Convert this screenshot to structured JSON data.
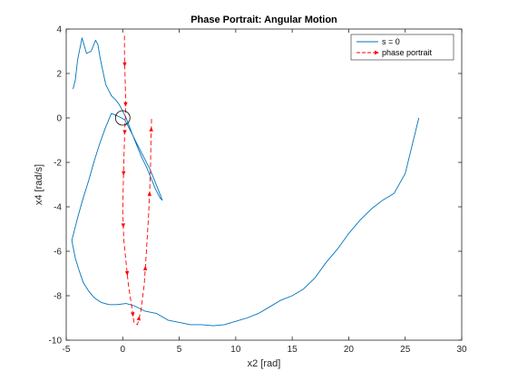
{
  "chart_data": {
    "type": "line",
    "title": "Phase Portrait: Angular Motion",
    "xlabel": "x2 [rad]",
    "ylabel": "x4 [rad/s]",
    "xlim": [
      -5,
      30
    ],
    "ylim": [
      -10,
      4
    ],
    "xticks": [
      -5,
      0,
      5,
      10,
      15,
      20,
      25,
      30
    ],
    "yticks": [
      -10,
      -8,
      -6,
      -4,
      -2,
      0,
      2,
      4
    ],
    "grid": false,
    "legend_position": "top-right",
    "series": [
      {
        "name": "s = 0",
        "color": "#0072BD",
        "style": "solid",
        "x": [
          -4.4,
          -4.2,
          -4.0,
          -3.6,
          -3.2,
          -2.8,
          -2.4,
          -2.2,
          -2.0,
          -1.8,
          -1.5,
          -1.2,
          -1.0,
          -0.8,
          -0.6,
          -0.3,
          0.0,
          0.3,
          0.6,
          0.9,
          1.3,
          1.7,
          2.1,
          2.5,
          2.9,
          3.3,
          3.5,
          3.2,
          2.8,
          2.4,
          2.0,
          1.6,
          1.2,
          0.8,
          0.5,
          0.2,
          -0.1,
          -0.5,
          -1.0,
          -1.5,
          -2.0,
          -2.5,
          -3.0,
          -3.5,
          -4.0,
          -4.4,
          -4.5,
          -4.4,
          -4.2,
          -3.9,
          -3.5,
          -3.0,
          -2.5,
          -1.9,
          -1.2,
          -0.5,
          0.3,
          1.0,
          2.0,
          3.0,
          4.0,
          5.0,
          6.0,
          7.0,
          8.0,
          9.0,
          10.0,
          11.0,
          12.0,
          13.0,
          14.0,
          15.0,
          16.0,
          17.0,
          18.0,
          19.0,
          20.0,
          21.0,
          22.0,
          23.0,
          24.0,
          25.0,
          26.2
        ],
        "y": [
          1.3,
          1.7,
          2.6,
          3.6,
          2.9,
          3.0,
          3.5,
          3.3,
          2.7,
          2.2,
          1.5,
          1.2,
          1.0,
          0.9,
          0.8,
          0.6,
          0.3,
          0.0,
          -0.4,
          -0.8,
          -1.3,
          -1.8,
          -2.2,
          -2.7,
          -3.2,
          -3.6,
          -3.7,
          -3.3,
          -2.8,
          -2.3,
          -1.9,
          -1.5,
          -1.1,
          -0.7,
          -0.4,
          -0.1,
          0.0,
          0.1,
          0.2,
          -0.4,
          -1.1,
          -1.9,
          -2.8,
          -3.6,
          -4.5,
          -5.3,
          -5.5,
          -5.8,
          -6.3,
          -6.8,
          -7.4,
          -7.8,
          -8.1,
          -8.3,
          -8.4,
          -8.4,
          -8.35,
          -8.45,
          -8.7,
          -8.8,
          -9.1,
          -9.2,
          -9.3,
          -9.3,
          -9.35,
          -9.3,
          -9.15,
          -9.0,
          -8.8,
          -8.5,
          -8.2,
          -8.0,
          -7.7,
          -7.2,
          -6.5,
          -5.9,
          -5.2,
          -4.6,
          -4.1,
          -3.7,
          -3.4,
          -2.5,
          0.0
        ]
      },
      {
        "name": "phase portrait",
        "color": "#FF0000",
        "style": "dashed",
        "x": [
          0.15,
          0.15,
          0.2,
          0.25,
          0.25,
          0.2,
          0.15,
          0.1,
          0.05,
          0.0,
          0.1,
          0.3,
          0.5,
          0.8,
          1.0,
          1.3,
          1.6,
          1.9,
          2.1,
          2.3,
          2.45,
          2.5,
          2.55,
          2.6
        ],
        "y": [
          3.7,
          2.8,
          2.0,
          1.0,
          0.2,
          -0.3,
          -1.0,
          -2.0,
          -3.0,
          -4.2,
          -5.5,
          -6.5,
          -7.5,
          -8.5,
          -9.2,
          -9.3,
          -8.7,
          -7.5,
          -6.0,
          -4.3,
          -2.5,
          -1.0,
          0.0,
          0.0
        ]
      }
    ],
    "equilibrium_marker": {
      "x": 0,
      "y": 0,
      "shape": "circle"
    }
  }
}
